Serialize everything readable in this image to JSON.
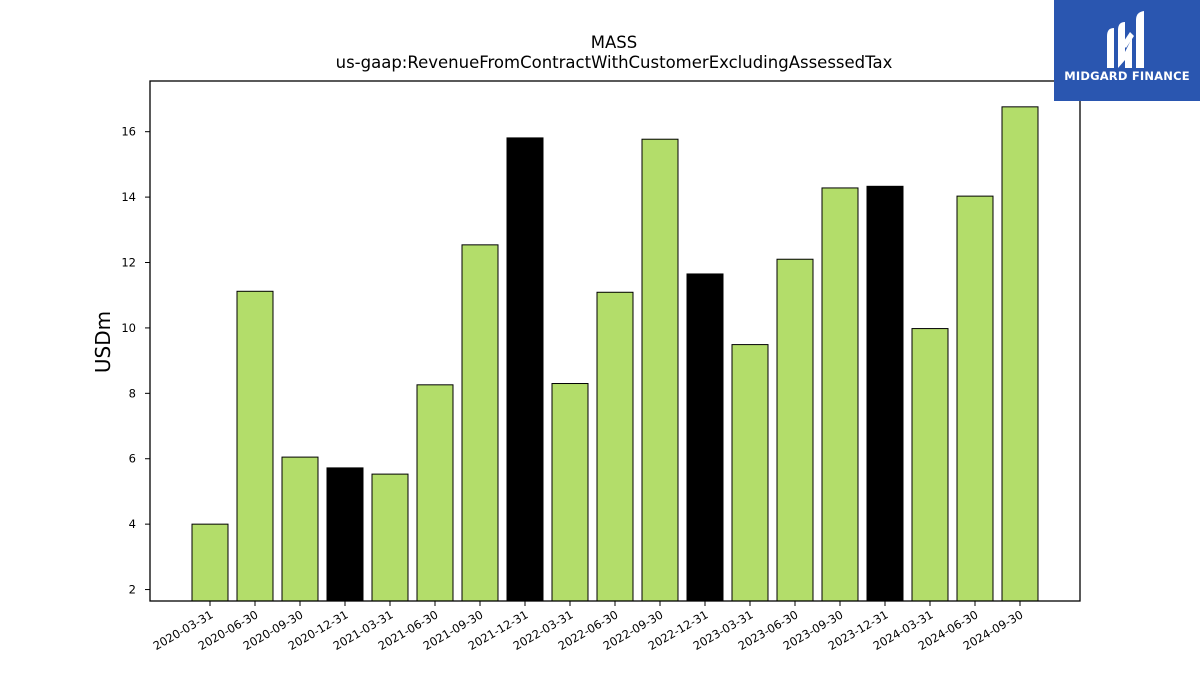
{
  "chart_data": {
    "type": "bar",
    "title": "MASS",
    "subtitle": "us-gaap:RevenueFromContractWithCustomerExcludingAssessedTax",
    "xlabel": "",
    "ylabel": "USDm",
    "ylim": [
      1.65,
      17.55
    ],
    "yticks": [
      2,
      4,
      6,
      8,
      10,
      12,
      14,
      16
    ],
    "categories": [
      "2020-03-31",
      "2020-06-30",
      "2020-09-30",
      "2020-12-31",
      "2021-03-31",
      "2021-06-30",
      "2021-09-30",
      "2021-12-31",
      "2022-03-31",
      "2022-06-30",
      "2022-09-30",
      "2022-12-31",
      "2023-03-31",
      "2023-06-30",
      "2023-09-30",
      "2023-12-31",
      "2024-03-31",
      "2024-06-30",
      "2024-09-30"
    ],
    "values": [
      4.0,
      11.12,
      6.05,
      5.72,
      5.53,
      8.26,
      12.54,
      15.81,
      8.3,
      11.09,
      15.77,
      11.65,
      9.49,
      12.1,
      14.28,
      14.33,
      9.98,
      14.03,
      16.76
    ],
    "bar_colors": [
      "#b3dd6a",
      "#b3dd6a",
      "#b3dd6a",
      "#000000",
      "#b3dd6a",
      "#b3dd6a",
      "#b3dd6a",
      "#000000",
      "#b3dd6a",
      "#b3dd6a",
      "#b3dd6a",
      "#000000",
      "#b3dd6a",
      "#b3dd6a",
      "#b3dd6a",
      "#000000",
      "#b3dd6a",
      "#b3dd6a",
      "#b3dd6a"
    ],
    "grid": false,
    "legend": "none"
  },
  "logo": {
    "text": "MIDGARD FINANCE",
    "background": "#2a56b0",
    "icon": "midgard-logo-icon"
  }
}
